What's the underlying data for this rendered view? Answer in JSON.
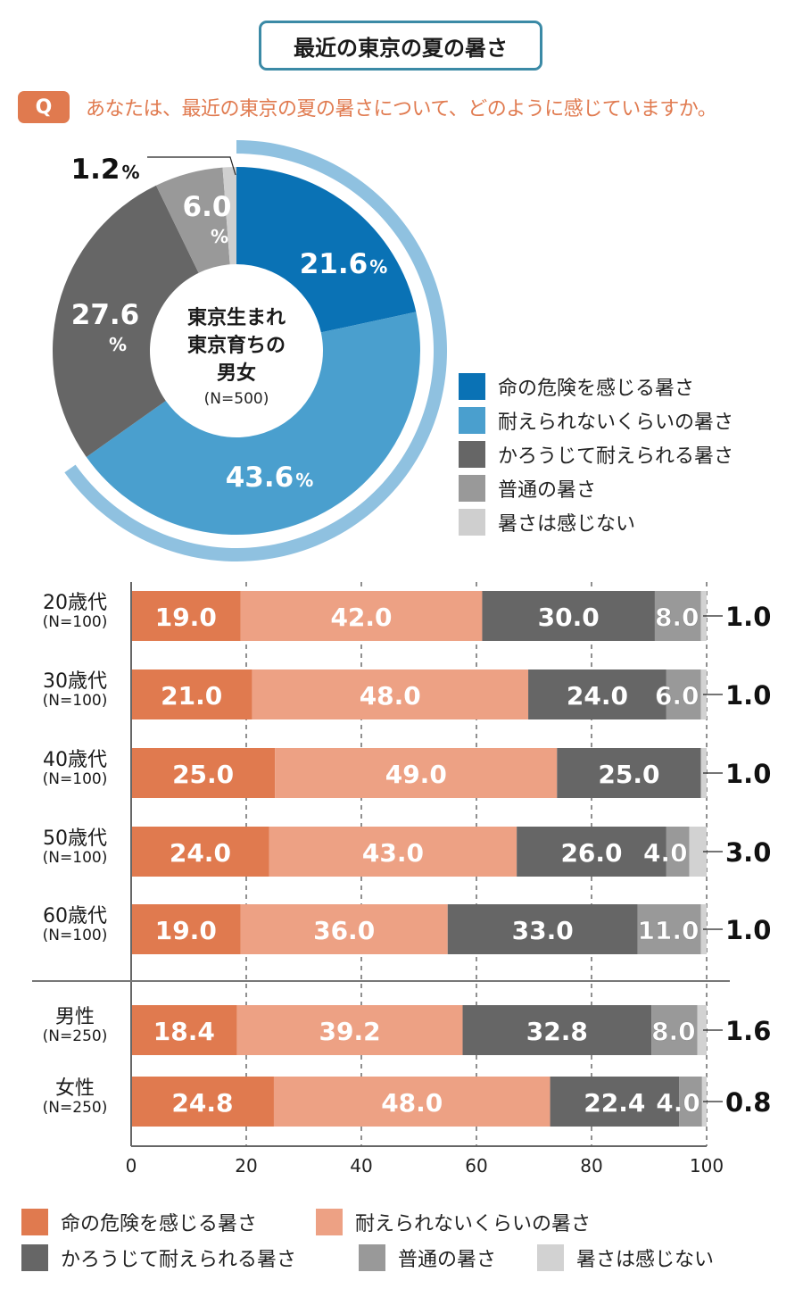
{
  "header": {
    "title": "最近の東京の夏の暑さ",
    "question_badge": "Q",
    "question_text": "あなたは、最近の東京の夏の暑さについて、どのように感じていますか。"
  },
  "colors": {
    "title_border": "#3b8aa6",
    "question_accent": "#e07a4f",
    "pie": [
      "#0a72b5",
      "#4a9fce",
      "#666666",
      "#999999",
      "#cfcfcf"
    ],
    "pie_outer_arc": "#8fc1e0",
    "bar": [
      "#e07a4f",
      "#eda184",
      "#666666",
      "#999999",
      "#d2d2d2"
    ]
  },
  "chart_data": [
    {
      "type": "pie",
      "variant": "donut",
      "center_label": [
        "東京生まれ",
        "東京育ちの",
        "男女"
      ],
      "center_sub": "(N=500)",
      "slices": [
        {
          "label": "命の危険を感じる暑さ",
          "value": 21.6,
          "display": "21.6",
          "unit": "%"
        },
        {
          "label": "耐えられないくらいの暑さ",
          "value": 43.6,
          "display": "43.6",
          "unit": "%"
        },
        {
          "label": "かろうじて耐えられる暑さ",
          "value": 27.6,
          "display": "27.6",
          "unit": "%"
        },
        {
          "label": "普通の暑さ",
          "value": 6.0,
          "display": "6.0",
          "unit": "%"
        },
        {
          "label": "暑さは感じない",
          "value": 1.2,
          "display": "1.2",
          "unit": "%"
        }
      ],
      "highlight_arc": "命の危険を感じる暑さ + 耐えられないくらいの暑さ",
      "legend": [
        "命の危険を感じる暑さ",
        "耐えられないくらいの暑さ",
        "かろうじて耐えられる暑さ",
        "普通の暑さ",
        "暑さは感じない"
      ],
      "legend_position": "right"
    },
    {
      "type": "bar",
      "orientation": "horizontal",
      "stacked": true,
      "categories": [
        {
          "label": "20歳代",
          "n": "(N=100)"
        },
        {
          "label": "30歳代",
          "n": "(N=100)"
        },
        {
          "label": "40歳代",
          "n": "(N=100)"
        },
        {
          "label": "50歳代",
          "n": "(N=100)"
        },
        {
          "label": "60歳代",
          "n": "(N=100)"
        },
        {
          "label": "男性",
          "n": "(N=250)"
        },
        {
          "label": "女性",
          "n": "(N=250)"
        }
      ],
      "groups": [
        [
          0,
          1,
          2,
          3,
          4
        ],
        [
          5,
          6
        ]
      ],
      "series": [
        {
          "name": "命の危険を感じる暑さ",
          "values": [
            19.0,
            21.0,
            25.0,
            24.0,
            19.0,
            18.4,
            24.8
          ]
        },
        {
          "name": "耐えられないくらいの暑さ",
          "values": [
            42.0,
            48.0,
            49.0,
            43.0,
            36.0,
            39.2,
            48.0
          ]
        },
        {
          "name": "かろうじて耐えられる暑さ",
          "values": [
            30.0,
            24.0,
            25.0,
            26.0,
            33.0,
            32.8,
            22.4
          ]
        },
        {
          "name": "普通の暑さ",
          "values": [
            8.0,
            6.0,
            0.0,
            4.0,
            11.0,
            8.0,
            4.0
          ]
        },
        {
          "name": "暑さは感じない",
          "values": [
            1.0,
            1.0,
            1.0,
            3.0,
            1.0,
            1.6,
            0.8
          ]
        }
      ],
      "outside_labels": [
        "1.0",
        "1.0",
        "1.0",
        "3.0",
        "1.0",
        "1.6",
        "0.8"
      ],
      "inside_label_series": [
        0,
        1,
        2,
        3
      ],
      "xlim": [
        0,
        100
      ],
      "xticks": [
        0,
        20,
        40,
        60,
        80,
        100
      ],
      "grid": "dashed vertical",
      "legend": [
        "命の危険を感じる暑さ",
        "耐えられないくらいの暑さ",
        "かろうじて耐えられる暑さ",
        "普通の暑さ",
        "暑さは感じない"
      ],
      "legend_position": "bottom"
    }
  ]
}
